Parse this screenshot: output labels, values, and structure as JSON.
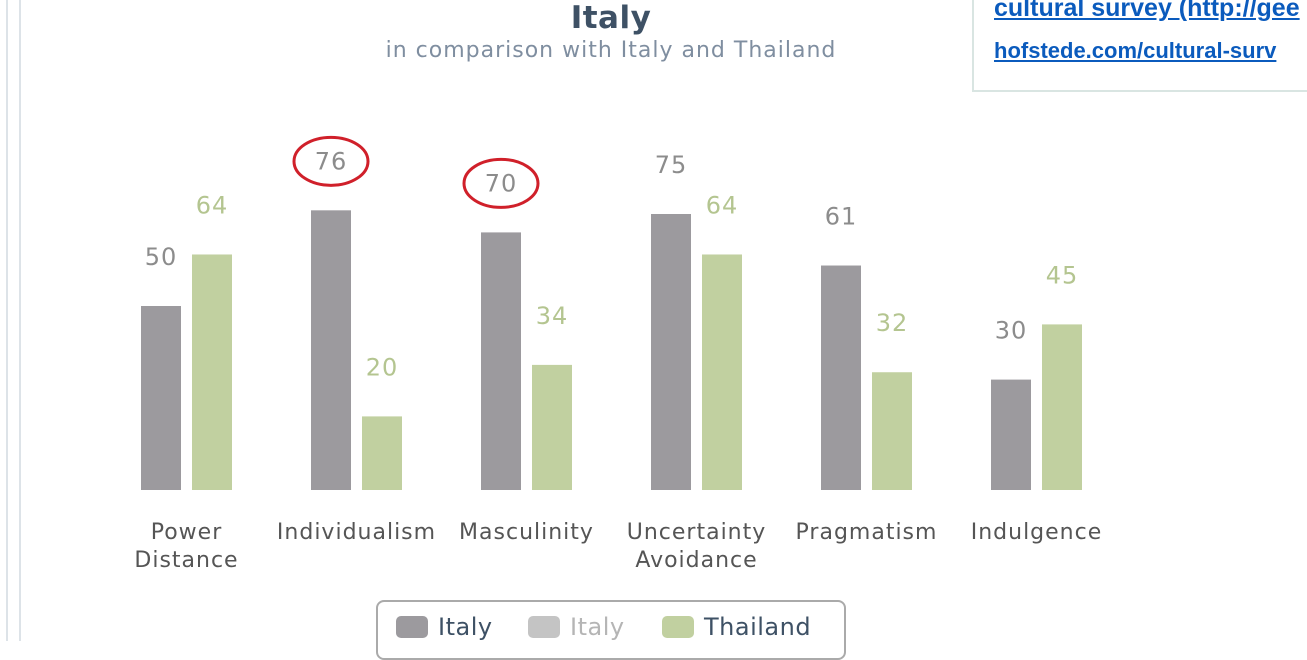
{
  "chart_data": {
    "type": "bar",
    "title": "Italy",
    "subtitle": "in comparison with Italy and Thailand",
    "categories": [
      [
        "Power",
        "Distance"
      ],
      [
        "Individualism"
      ],
      [
        "Masculinity"
      ],
      [
        "Uncertainty",
        "Avoidance"
      ],
      [
        "Pragmatism"
      ],
      [
        "Indulgence"
      ]
    ],
    "series": [
      {
        "name": "Italy",
        "color": "#9c9a9e",
        "label_color": "#8c8c8c",
        "values": [
          50,
          76,
          70,
          75,
          61,
          30
        ]
      },
      {
        "name": "Thailand",
        "color": "#c1d0a0",
        "label_color": "#b4c590",
        "values": [
          64,
          20,
          34,
          64,
          32,
          45
        ]
      }
    ],
    "ylim": [
      0,
      100
    ],
    "grid": false,
    "legend_position": "bottom",
    "legend": [
      {
        "name": "Italy",
        "color": "#9c9a9e",
        "text_color": "#3e5165"
      },
      {
        "name": "Italy",
        "color": "#c4c4c4",
        "text_color": "#b5b5b5"
      },
      {
        "name": "Thailand",
        "color": "#c1d0a0",
        "text_color": "#3e5165"
      }
    ],
    "annotations": [
      {
        "type": "circle",
        "color": "#d0202a",
        "target": "76"
      },
      {
        "type": "circle",
        "color": "#d0202a",
        "target": "70"
      }
    ]
  },
  "source": {
    "line1": "cultural survey (http://gee",
    "line2": "hofstede.com/cultural-surv"
  }
}
